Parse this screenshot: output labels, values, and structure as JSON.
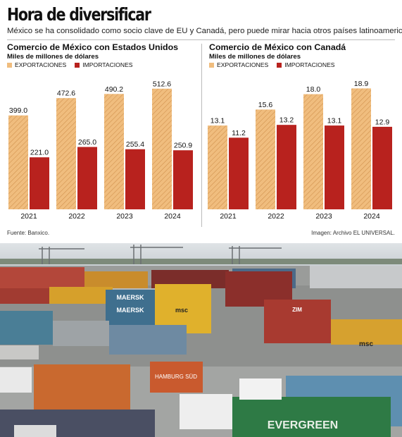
{
  "title": "Hora de diversificar",
  "subtitle": "México se ha consolidado como socio clave de EU y Canadá, pero puede mirar hacia otros países latinoamericanos.",
  "legend": {
    "exports": "EXPORTACIONES",
    "imports": "IMPORTACIONES"
  },
  "colors": {
    "exports": "#f0bd7e",
    "exports_hatch": "#cf8f4a",
    "imports": "#b8221e"
  },
  "chart_data": [
    {
      "type": "bar",
      "title": "Comercio de México con Estados Unidos",
      "ylabel": "Miles de millones de dólares",
      "categories": [
        "2021",
        "2022",
        "2023",
        "2024"
      ],
      "series": [
        {
          "name": "EXPORTACIONES",
          "values": [
            399.0,
            472.6,
            490.2,
            512.6
          ]
        },
        {
          "name": "IMPORTACIONES",
          "values": [
            221.0,
            265.0,
            255.4,
            250.9
          ]
        }
      ],
      "ylim": [
        0,
        530
      ],
      "grid": false
    },
    {
      "type": "bar",
      "title": "Comercio de México con Canadá",
      "ylabel": "Miles de millones de dólares",
      "categories": [
        "2021",
        "2022",
        "2023",
        "2024"
      ],
      "series": [
        {
          "name": "EXPORTACIONES",
          "values": [
            13.1,
            15.6,
            18.0,
            18.9
          ]
        },
        {
          "name": "IMPORTACIONES",
          "values": [
            11.2,
            13.2,
            13.1,
            12.9
          ]
        }
      ],
      "ylim": [
        0,
        19.5
      ],
      "grid": false
    }
  ],
  "source": "Fuente: Banxico.",
  "image_credit": "Imagen: Archivo EL UNIVERSAL.",
  "photo": {
    "description_icon": "port-container-yard-photo",
    "container_brands": [
      "MAERSK",
      "EVERGREEN",
      "HAMBURG SÜD",
      "msc",
      "ZIM"
    ]
  }
}
